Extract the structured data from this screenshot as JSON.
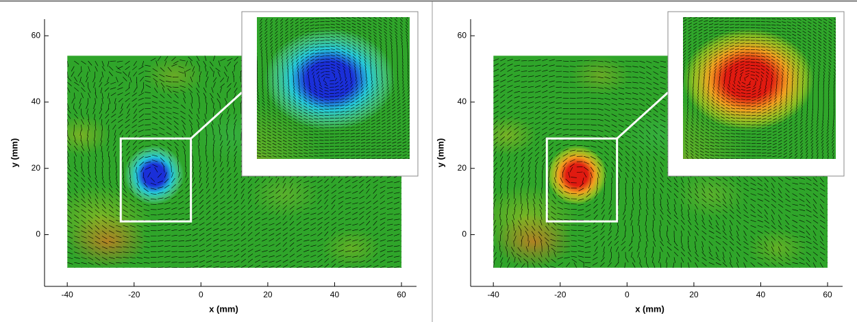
{
  "chart_data": [
    {
      "type": "vector-field",
      "xlabel": "x (mm)",
      "ylabel": "y (mm)",
      "xlim": [
        -46.8,
        64.5
      ],
      "ylim": [
        -15.6,
        65
      ],
      "xticks": [
        -40,
        -20,
        0,
        20,
        40,
        60
      ],
      "yticks": [
        0,
        20,
        40,
        60
      ],
      "field_extent": {
        "x": [
          -40,
          60
        ],
        "y": [
          -10,
          54
        ]
      },
      "zoom_box": {
        "x": [
          -24,
          -3
        ],
        "y": [
          4,
          29
        ]
      },
      "vortex_center": [
        -14,
        18
      ],
      "vortex_color": "#1a2fd8"
    },
    {
      "type": "vector-field",
      "xlabel": "x (mm)",
      "ylabel": "y (mm)",
      "xlim": [
        -46.8,
        64.5
      ],
      "ylim": [
        -15.6,
        65
      ],
      "xticks": [
        -40,
        -20,
        0,
        20,
        40,
        60
      ],
      "yticks": [
        0,
        20,
        40,
        60
      ],
      "field_extent": {
        "x": [
          -40,
          60
        ],
        "y": [
          -10,
          54
        ]
      },
      "zoom_box": {
        "x": [
          -24,
          -3
        ],
        "y": [
          4,
          29
        ]
      },
      "vortex_center": [
        -15,
        18
      ],
      "vortex_color": "#e01a10"
    }
  ]
}
